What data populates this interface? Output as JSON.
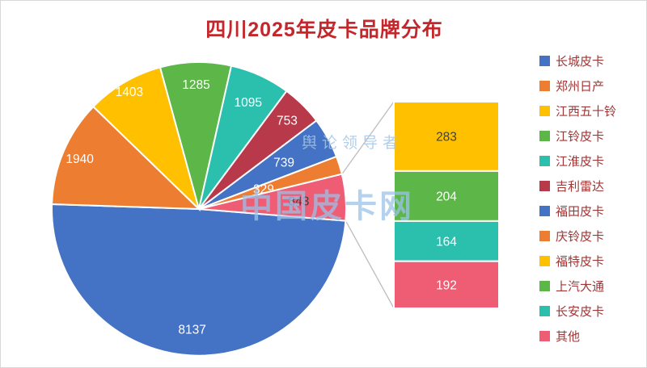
{
  "page": {
    "watermark_main": "中国皮卡网",
    "watermark_sub": "舆论领导者"
  },
  "chart_data": {
    "type": "pie",
    "subtype": "bar-of-pie",
    "title": "四川2025年皮卡品牌分布",
    "legend_position": "right",
    "pie_slices": [
      {
        "label": "长城皮卡",
        "value": 8137,
        "color": "#4472c4",
        "text_color": "#ffffff"
      },
      {
        "label": "郑州日产",
        "value": 1940,
        "color": "#ed7d31",
        "text_color": "#ffffff"
      },
      {
        "label": "江西五十铃",
        "value": 1403,
        "color": "#ffc000",
        "text_color": "#ffffff"
      },
      {
        "label": "江铃皮卡",
        "value": 1285,
        "color": "#5cb648",
        "text_color": "#ffffff"
      },
      {
        "label": "江淮皮卡",
        "value": 1095,
        "color": "#2bbfae",
        "text_color": "#ffffff"
      },
      {
        "label": "吉利雷达",
        "value": 753,
        "color": "#b8394a",
        "text_color": "#ffffff"
      },
      {
        "label": "福田皮卡",
        "value": 739,
        "color": "#4472c4",
        "text_color": "#ffffff"
      },
      {
        "label": "庆铃皮卡",
        "value": 329,
        "color": "#ed7d31",
        "text_color": "#ffffff"
      },
      {
        "label": "",
        "value": 843,
        "color": "#ef5d75",
        "text_color": "#404040",
        "combined": true
      }
    ],
    "bar_segments": [
      {
        "label": "福特皮卡",
        "value": 283,
        "color": "#ffc000",
        "text_color": "#404040"
      },
      {
        "label": "上汽大通",
        "value": 204,
        "color": "#5cb648",
        "text_color": "#ffffff"
      },
      {
        "label": "长安皮卡",
        "value": 164,
        "color": "#2bbfae",
        "text_color": "#ffffff"
      },
      {
        "label": "其他",
        "value": 192,
        "color": "#ef5d75",
        "text_color": "#ffffff"
      }
    ],
    "legend": [
      {
        "label": "长城皮卡",
        "color": "#4472c4"
      },
      {
        "label": "郑州日产",
        "color": "#ed7d31"
      },
      {
        "label": "江西五十铃",
        "color": "#ffc000"
      },
      {
        "label": "江铃皮卡",
        "color": "#5cb648"
      },
      {
        "label": "江淮皮卡",
        "color": "#2bbfae"
      },
      {
        "label": "吉利雷达",
        "color": "#b8394a"
      },
      {
        "label": "福田皮卡",
        "color": "#4472c4"
      },
      {
        "label": "庆铃皮卡",
        "color": "#ed7d31"
      },
      {
        "label": "福特皮卡",
        "color": "#ffc000"
      },
      {
        "label": "上汽大通",
        "color": "#5cb648"
      },
      {
        "label": "长安皮卡",
        "color": "#2bbfae"
      },
      {
        "label": "其他",
        "color": "#ef5d75"
      }
    ]
  }
}
